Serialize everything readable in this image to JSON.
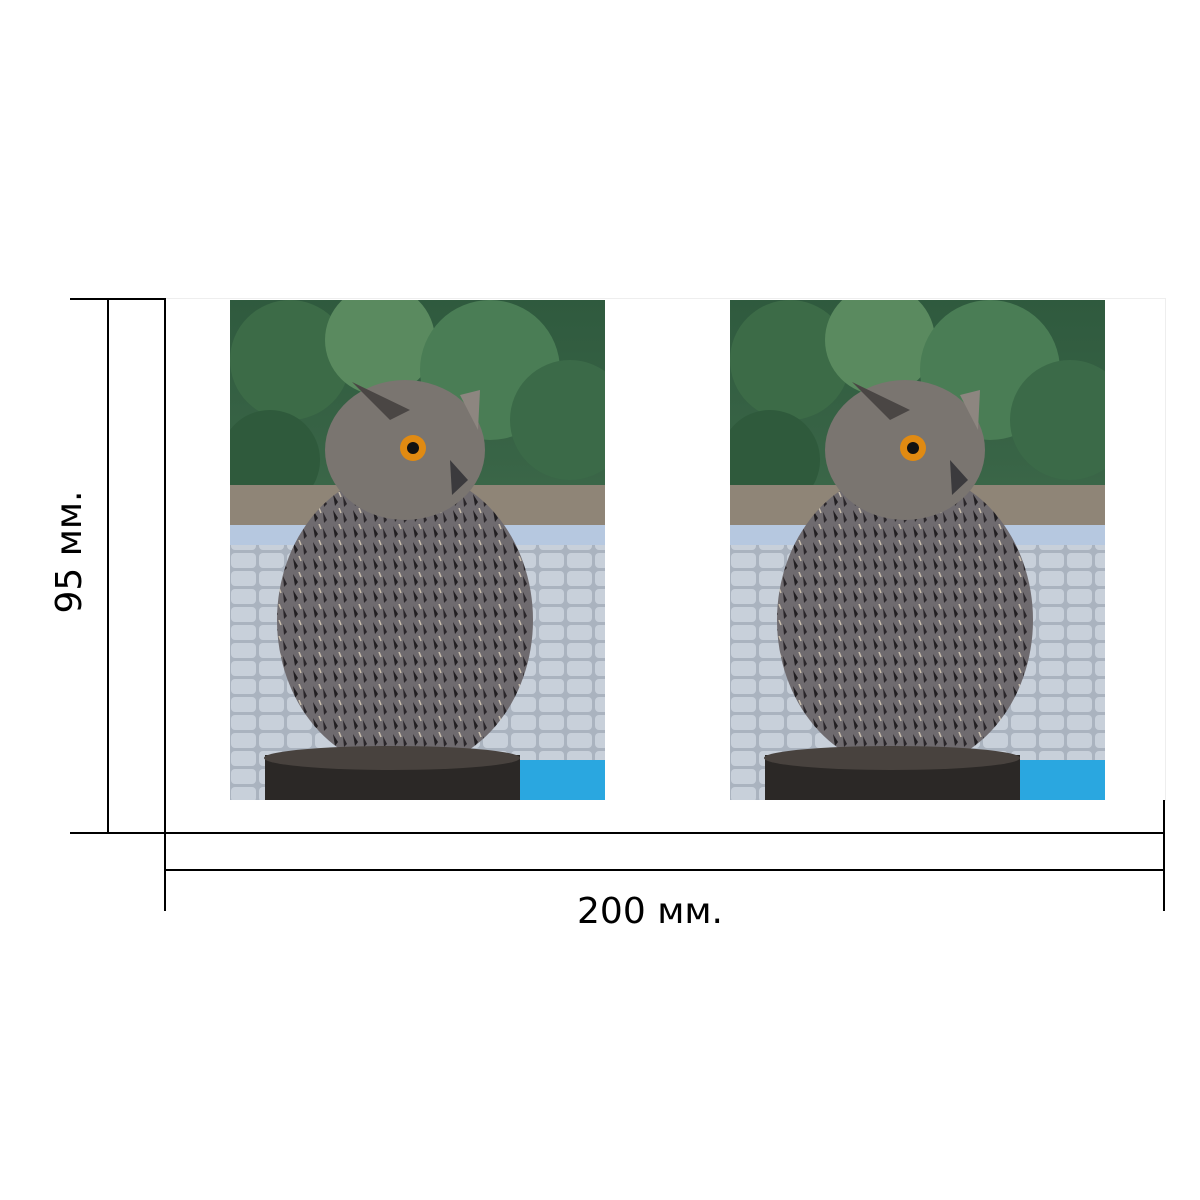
{
  "dimensions": {
    "width_label": "200 мм.",
    "height_label": "95 мм."
  },
  "photos": [
    {
      "subject": "owl-photo"
    },
    {
      "subject": "owl-photo"
    }
  ],
  "colors": {
    "line": "#000000",
    "background": "#ffffff",
    "foliage": "#3f6a4a",
    "pavement": "#b9c2cc",
    "owl_body": "#5d5a5e",
    "owl_eye": "#e08a12",
    "stump": "#2b2826",
    "blue_mat": "#2aa7e0"
  }
}
